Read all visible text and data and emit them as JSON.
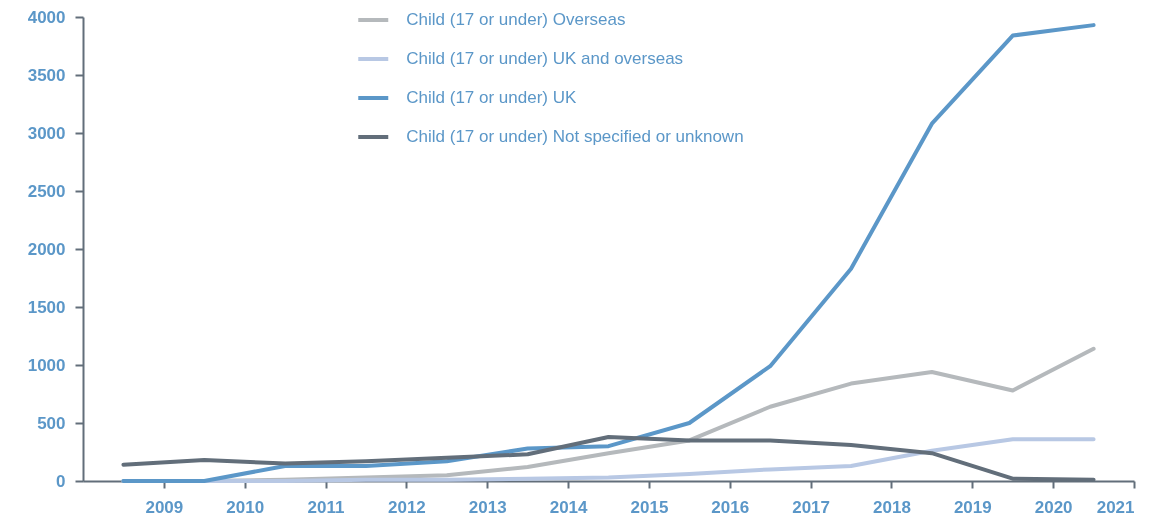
{
  "chart_data": {
    "type": "line",
    "x": [
      2008.5,
      2009.5,
      2010.5,
      2011.5,
      2012.5,
      2013.5,
      2014.5,
      2015.5,
      2016.5,
      2017.5,
      2018.5,
      2019.5,
      2020.5
    ],
    "xlim": [
      2008,
      2021
    ],
    "xticks": [
      2009,
      2010,
      2011,
      2012,
      2013,
      2014,
      2015,
      2016,
      2017,
      2018,
      2019,
      2020,
      2021
    ],
    "ylim": [
      0,
      4000
    ],
    "yticks": [
      0,
      500,
      1000,
      1500,
      2000,
      2500,
      3000,
      3500,
      4000
    ],
    "grid": false,
    "legend": "top",
    "line_style": "solid",
    "marker": "none",
    "series": [
      {
        "name": "Child (17 or under) Overseas",
        "color": "#b5b9bc",
        "values": [
          0,
          0,
          10,
          30,
          50,
          120,
          240,
          350,
          640,
          840,
          940,
          780,
          1140
        ]
      },
      {
        "name": "Child (17 or under) UK and overseas",
        "color": "#b8c8e4",
        "values": [
          0,
          0,
          0,
          10,
          10,
          20,
          30,
          60,
          100,
          130,
          260,
          360,
          360
        ]
      },
      {
        "name": "Child (17 or under) UK",
        "color": "#5b97c8",
        "values": [
          0,
          0,
          130,
          130,
          170,
          280,
          300,
          500,
          990,
          1830,
          3080,
          3840,
          3930
        ]
      },
      {
        "name": "Child (17 or under) Not specified or unknown",
        "color": "#626e7a",
        "values": [
          140,
          180,
          150,
          170,
          200,
          230,
          380,
          350,
          350,
          310,
          240,
          20,
          10
        ]
      }
    ]
  }
}
